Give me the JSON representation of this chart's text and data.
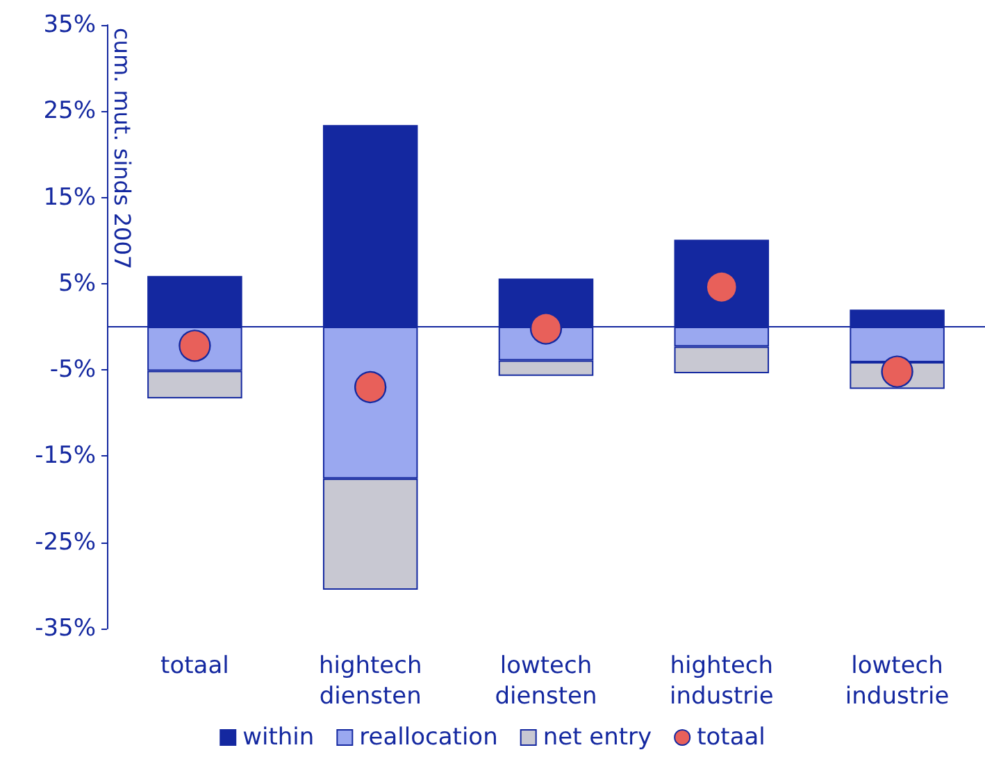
{
  "chart_data": {
    "type": "bar",
    "stacked": true,
    "ylabel": "cum. mut. sinds 2007",
    "categories": [
      "totaal",
      "hightech diensten",
      "lowtech diensten",
      "hightech industrie",
      "lowtech industrie"
    ],
    "series": [
      {
        "name": "within",
        "color": "#1428a0",
        "values": [
          5.9,
          23.4,
          5.6,
          10.1,
          2.0
        ]
      },
      {
        "name": "reallocation",
        "color": "#9aa8f0",
        "values": [
          -5.1,
          -17.6,
          -3.9,
          -2.3,
          -4.1
        ]
      },
      {
        "name": "net entry",
        "color": "#c8c8d2",
        "values": [
          -3.2,
          -12.9,
          -1.8,
          -3.1,
          -3.1
        ]
      },
      {
        "name": "totaal",
        "type": "scatter",
        "color": "#e8605a",
        "x": [
          "totaal",
          "hightech diensten",
          "lowtech diensten",
          "hightech industrie",
          "lowtech industrie"
        ],
        "values": [
          -2.2,
          -7.0,
          -0.2,
          4.6,
          -5.2
        ]
      }
    ],
    "ylim": [
      -35,
      35
    ],
    "yticks": [
      {
        "value": -35,
        "label": "-35%"
      },
      {
        "value": -25,
        "label": "-25%"
      },
      {
        "value": -15,
        "label": "-15%"
      },
      {
        "value": -5,
        "label": "-5%"
      },
      {
        "value": 5,
        "label": "5%"
      },
      {
        "value": 15,
        "label": "15%"
      },
      {
        "value": 25,
        "label": "25%"
      },
      {
        "value": 35,
        "label": "35%"
      }
    ],
    "ref_lines": [
      {
        "axis": "y",
        "value": 0,
        "color": "#1428a0"
      }
    ],
    "grid": false,
    "legend": "bottom",
    "marker": "circle"
  }
}
